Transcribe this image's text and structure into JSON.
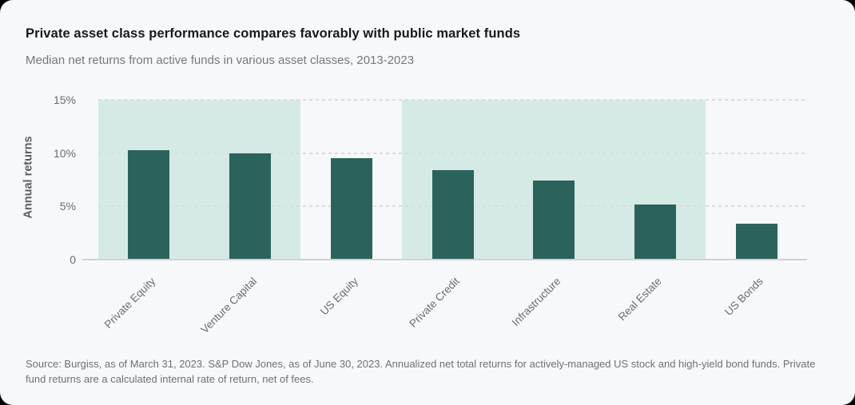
{
  "header": {
    "title": "Private asset class performance compares favorably with public market funds",
    "subtitle": "Median net returns from active funds in various asset classes, 2013-2023"
  },
  "chart_data": {
    "type": "bar",
    "title": "Private asset class performance compares favorably with public market funds",
    "subtitle": "Median net returns from active funds in various asset classes, 2013-2023",
    "categories": [
      "Private Equity",
      "Venture Capital",
      "US Equity",
      "Private Credit",
      "Infrastructure",
      "Real Estate",
      "US Bonds"
    ],
    "values": [
      10.3,
      10.0,
      9.5,
      8.4,
      7.4,
      5.2,
      3.4
    ],
    "unit": "%",
    "xlabel": "",
    "ylabel": "Annual returns",
    "ylim": [
      0,
      15
    ],
    "y_ticks": [
      {
        "value": 15,
        "label": "15%"
      },
      {
        "value": 10,
        "label": "10%"
      },
      {
        "value": 5,
        "label": "5%"
      },
      {
        "value": 0,
        "label": "0"
      }
    ],
    "grid": "horizontal dashed",
    "legend_position": "none",
    "highlight_bands": [
      {
        "start_index": 0,
        "end_index": 1,
        "categories": [
          "Private Equity",
          "Venture Capital"
        ]
      },
      {
        "start_index": 3,
        "end_index": 5,
        "categories": [
          "Private Credit",
          "Infrastructure",
          "Real Estate"
        ]
      }
    ]
  },
  "footer": {
    "source": "Source: Burgiss, as of March 31, 2023. S&P Dow Jones, as of June 30, 2023. Annualized net total returns for actively-managed US stock and high-yield bond funds. Private fund returns are a calculated internal rate of return, net of fees."
  },
  "colors": {
    "bar": "#2b635c",
    "highlight_band": "#d5eae5",
    "card_background": "#f7f8f9",
    "page_background": "#000000",
    "gridline": "#d9dcdf",
    "axis_line": "#cfd2d8",
    "title_text": "#17191c",
    "subtitle_text": "#74787d",
    "axis_text": "#686c71",
    "y_axis_title_text": "#5a5e63",
    "source_text": "#6d7176"
  }
}
